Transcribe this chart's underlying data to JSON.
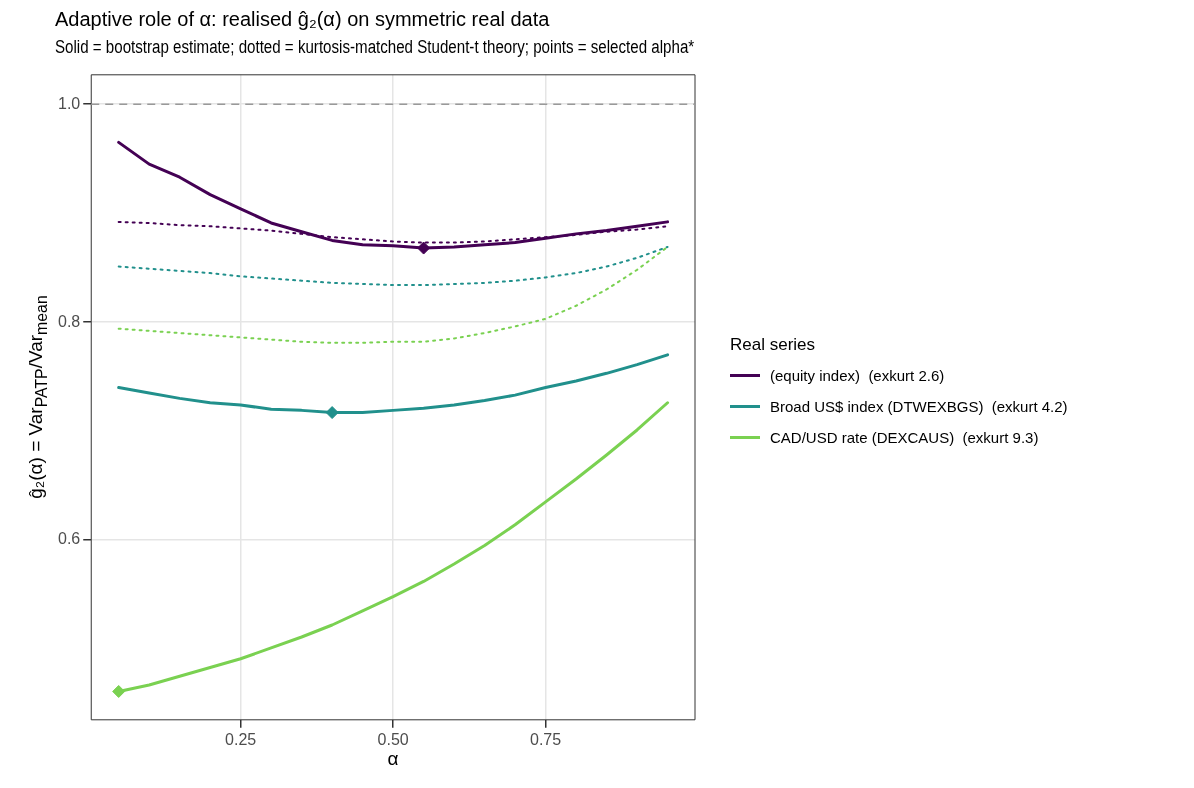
{
  "chart_data": {
    "type": "line",
    "title": "Adaptive role of α: realised ĝ₂(α) on symmetric real data",
    "subtitle": "Solid = bootstrap estimate; dotted = kurtosis-matched Student-t theory; points = selected alpha*",
    "xlabel": "α",
    "ylabel": "ĝ₂(α) = Var$_{PATP}$/Var$_{mean}$",
    "legend_title": "Real series",
    "legend": "right",
    "grid": true,
    "x": [
      0.05,
      0.1,
      0.15,
      0.2,
      0.25,
      0.3,
      0.35,
      0.4,
      0.45,
      0.5,
      0.55,
      0.6,
      0.65,
      0.7,
      0.75,
      0.8,
      0.85,
      0.9,
      0.95
    ],
    "xlim": [
      0.005,
      0.995
    ],
    "xticks": [
      {
        "value": 0.25,
        "label": "0.25"
      },
      {
        "value": 0.5,
        "label": "0.50"
      },
      {
        "value": 0.75,
        "label": "0.75"
      }
    ],
    "ylim": [
      0.435,
      1.027
    ],
    "yticks": [
      {
        "value": 0.6,
        "label": "0.6"
      },
      {
        "value": 0.8,
        "label": "0.8"
      },
      {
        "value": 1.0,
        "label": "1.0"
      }
    ],
    "ref_lines": [
      {
        "axis": "y",
        "value": 1.0,
        "color": "#999999",
        "line_style": "dashed"
      }
    ],
    "series": [
      {
        "name": "(equity index)  (exkurt 2.6)",
        "color": "#440154",
        "line_style": "solid",
        "values": [
          0.965,
          0.945,
          0.933,
          0.917,
          0.904,
          0.891,
          0.883,
          0.875,
          0.871,
          0.87,
          0.868,
          0.869,
          0.871,
          0.873,
          0.877,
          0.881,
          0.884,
          0.888,
          0.892
        ]
      },
      {
        "name": "Broad US$ index (DTWEXBGS)  (exkurt 4.2)",
        "color": "#21908c",
        "line_style": "solid",
        "values": [
          0.74,
          0.735,
          0.73,
          0.726,
          0.724,
          0.72,
          0.719,
          0.717,
          0.717,
          0.719,
          0.721,
          0.724,
          0.728,
          0.733,
          0.74,
          0.746,
          0.753,
          0.761,
          0.77
        ]
      },
      {
        "name": "CAD/USD rate (DEXCAUS)  (exkurt 9.3)",
        "color": "#7ad151",
        "line_style": "solid",
        "values": [
          0.461,
          0.467,
          0.475,
          0.483,
          0.491,
          0.501,
          0.511,
          0.522,
          0.535,
          0.548,
          0.562,
          0.578,
          0.595,
          0.614,
          0.635,
          0.656,
          0.678,
          0.701,
          0.726
        ]
      },
      {
        "color": "#440154",
        "line_style": "dotted",
        "values": [
          0.892,
          0.891,
          0.889,
          0.888,
          0.886,
          0.884,
          0.881,
          0.878,
          0.876,
          0.874,
          0.873,
          0.873,
          0.874,
          0.876,
          0.878,
          0.88,
          0.883,
          0.885,
          0.888
        ]
      },
      {
        "color": "#21908c",
        "line_style": "dotted",
        "values": [
          0.851,
          0.849,
          0.847,
          0.845,
          0.842,
          0.84,
          0.838,
          0.836,
          0.835,
          0.834,
          0.834,
          0.835,
          0.836,
          0.838,
          0.841,
          0.845,
          0.851,
          0.859,
          0.869
        ]
      },
      {
        "color": "#7ad151",
        "line_style": "dotted",
        "values": [
          0.794,
          0.792,
          0.79,
          0.788,
          0.786,
          0.784,
          0.782,
          0.781,
          0.781,
          0.782,
          0.782,
          0.785,
          0.79,
          0.796,
          0.803,
          0.815,
          0.83,
          0.848,
          0.869
        ]
      },
      {
        "color": "#440154",
        "type": "scatter",
        "marker": "diamond",
        "x": [
          0.55
        ],
        "values": [
          0.868
        ]
      },
      {
        "color": "#21908c",
        "type": "scatter",
        "marker": "diamond",
        "x": [
          0.4
        ],
        "values": [
          0.717
        ]
      },
      {
        "color": "#7ad151",
        "type": "scatter",
        "marker": "diamond",
        "x": [
          0.05
        ],
        "values": [
          0.461
        ]
      }
    ]
  }
}
